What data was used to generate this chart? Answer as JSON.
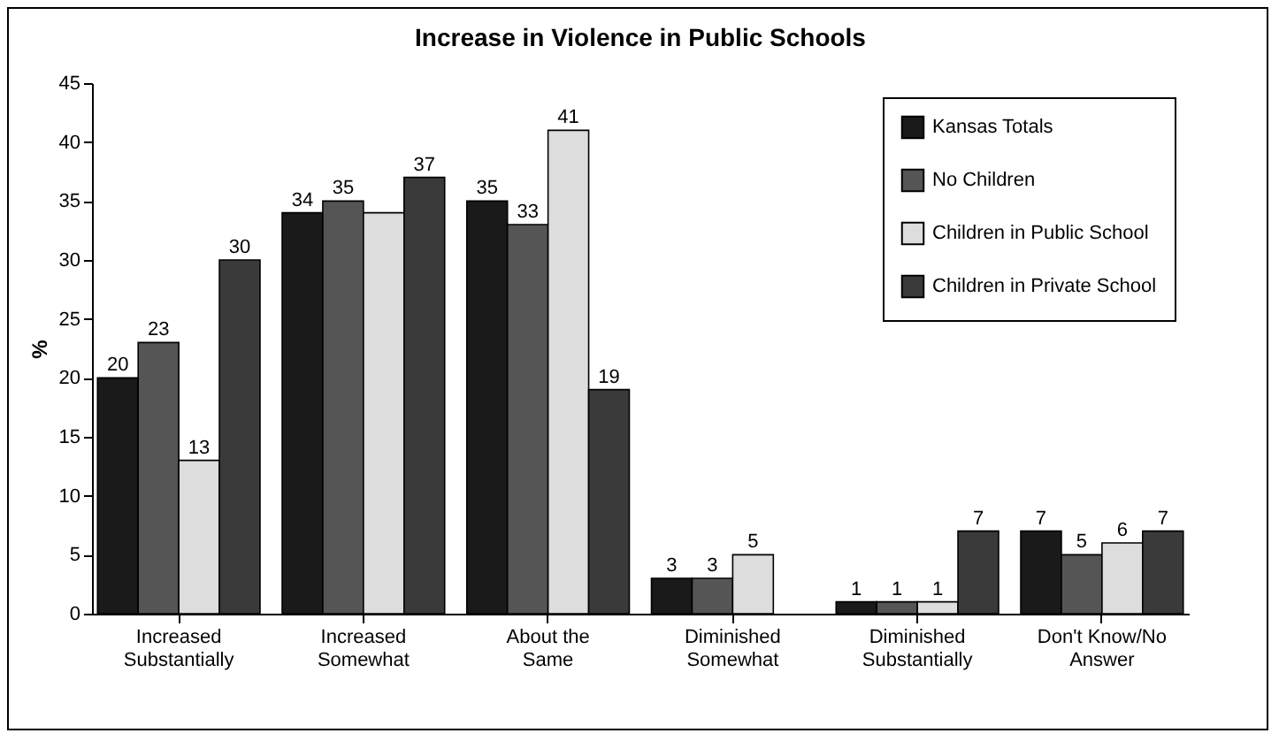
{
  "chart_data": {
    "type": "bar",
    "title": "Increase in Violence in Public Schools",
    "ylabel": "%",
    "categories": [
      "Increased Substantially",
      "Increased Somewhat",
      "About the Same",
      "Diminished Somewhat",
      "Diminished Substantially",
      "Don't Know/No Answer"
    ],
    "series": [
      {
        "name": "Kansas Totals",
        "color": "#1a1a1a",
        "values": [
          20,
          34,
          35,
          3,
          1,
          7
        ],
        "value_labels": [
          "20",
          "34",
          "35",
          "3",
          "1",
          "7"
        ]
      },
      {
        "name": "No Children",
        "color": "#555555",
        "values": [
          23,
          35,
          33,
          3,
          1,
          5
        ],
        "value_labels": [
          "23",
          "35",
          "33",
          "3",
          "1",
          "5"
        ]
      },
      {
        "name": "Children in Public School",
        "color": "#dddddd",
        "values": [
          13,
          34,
          41,
          5,
          1,
          6
        ],
        "value_labels": [
          "13",
          null,
          "41",
          "5",
          "1",
          "6"
        ]
      },
      {
        "name": "Children in Private School",
        "color": "#3a3a3a",
        "values": [
          30,
          37,
          19,
          null,
          7,
          7
        ],
        "value_labels": [
          "30",
          "37",
          "19",
          null,
          "7",
          "7"
        ]
      }
    ],
    "ylim": [
      0,
      45
    ],
    "yticks": [
      0,
      5,
      10,
      15,
      20,
      25,
      30,
      35,
      40,
      45
    ],
    "grid": false,
    "legend": "top right"
  }
}
